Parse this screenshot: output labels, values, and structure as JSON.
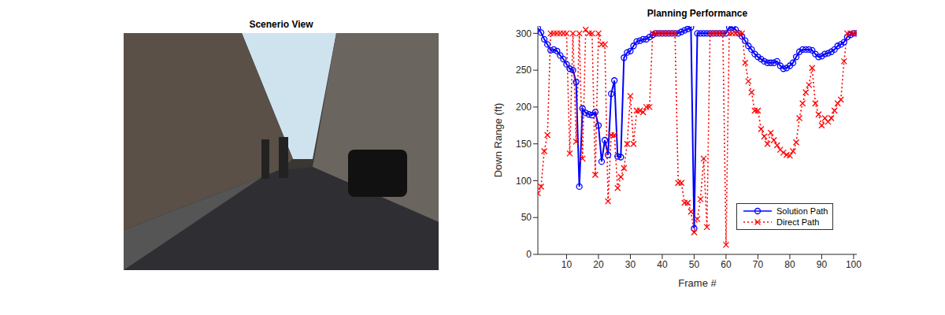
{
  "image_panel": {
    "title": "Scenerio View"
  },
  "chart_data": {
    "type": "line",
    "title": "Planning Performance",
    "x_label": "Frame #",
    "y_label": "Down Range (ft)",
    "x": [
      1,
      2,
      3,
      4,
      5,
      6,
      7,
      8,
      9,
      10,
      11,
      12,
      13,
      14,
      15,
      16,
      17,
      18,
      19,
      20,
      21,
      22,
      23,
      24,
      25,
      26,
      27,
      28,
      29,
      30,
      31,
      32,
      33,
      34,
      35,
      36,
      37,
      38,
      39,
      40,
      41,
      42,
      43,
      44,
      45,
      46,
      47,
      48,
      49,
      50,
      51,
      52,
      53,
      54,
      55,
      56,
      57,
      58,
      59,
      60,
      61,
      62,
      63,
      64,
      65,
      66,
      67,
      68,
      69,
      70,
      71,
      72,
      73,
      74,
      75,
      76,
      77,
      78,
      79,
      80,
      81,
      82,
      83,
      84,
      85,
      86,
      87,
      88,
      89,
      90,
      91,
      92,
      93,
      94,
      95,
      96,
      97,
      98,
      99,
      100,
      101
    ],
    "series": [
      {
        "name": "Solution Path",
        "color": "#0000ff",
        "marker": "circle",
        "line_style": "solid",
        "values": [
          307,
          301,
          292,
          285,
          277,
          278,
          276,
          270,
          265,
          258,
          252,
          250,
          234,
          92,
          198,
          192,
          190,
          189,
          193,
          175,
          126,
          155,
          135,
          218,
          236,
          133,
          132,
          267,
          274,
          276,
          283,
          289,
          290,
          292,
          292,
          295,
          298,
          300,
          300,
          300,
          300,
          300,
          300,
          300,
          300,
          302,
          304,
          306,
          308,
          35,
          300,
          300,
          300,
          300,
          300,
          300,
          300,
          300,
          300,
          300,
          308,
          308,
          305,
          300,
          296,
          290,
          283,
          278,
          272,
          268,
          265,
          262,
          260,
          260,
          260,
          262,
          256,
          252,
          253,
          256,
          260,
          268,
          275,
          278,
          278,
          278,
          277,
          272,
          268,
          269,
          272,
          273,
          275,
          278,
          283,
          285,
          288,
          295,
          298,
          300,
          300
        ]
      },
      {
        "name": "Direct Path",
        "color": "#ff0000",
        "marker": "x",
        "line_style": "dotted",
        "values": [
          83,
          92,
          140,
          162,
          300,
          300,
          300,
          300,
          300,
          300,
          137,
          300,
          153,
          300,
          130,
          305,
          300,
          300,
          108,
          300,
          285,
          285,
          72,
          162,
          162,
          90,
          105,
          117,
          150,
          215,
          150,
          195,
          195,
          193,
          200,
          200,
          300,
          300,
          300,
          300,
          300,
          300,
          300,
          300,
          97,
          97,
          70,
          70,
          58,
          30,
          48,
          75,
          130,
          37,
          300,
          300,
          300,
          300,
          300,
          13,
          300,
          300,
          300,
          300,
          300,
          260,
          235,
          220,
          195,
          195,
          170,
          160,
          150,
          165,
          155,
          148,
          142,
          138,
          135,
          134,
          140,
          152,
          185,
          205,
          220,
          230,
          253,
          205,
          190,
          175,
          185,
          180,
          185,
          195,
          205,
          210,
          262,
          300,
          300,
          300,
          300
        ]
      }
    ],
    "xlim": [
      1,
      101
    ],
    "xticks": [
      10,
      20,
      30,
      40,
      50,
      60,
      70,
      80,
      90,
      100
    ],
    "ylim": [
      0,
      310
    ],
    "yticks": [
      0,
      50,
      100,
      150,
      200,
      250,
      300
    ],
    "legend": "lower right"
  }
}
